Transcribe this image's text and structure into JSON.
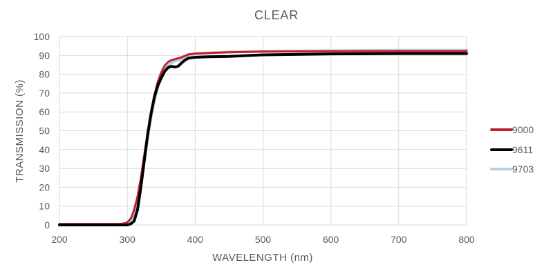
{
  "chart_data": {
    "type": "line",
    "title": "CLEAR",
    "xlabel": "WAVELENGTH (nm)",
    "ylabel": "TRANSMISSION (%)",
    "xlim": [
      200,
      800
    ],
    "ylim": [
      0,
      100
    ],
    "x_ticks": [
      200,
      300,
      400,
      500,
      600,
      700,
      800
    ],
    "y_ticks": [
      0,
      10,
      20,
      30,
      40,
      50,
      60,
      70,
      80,
      90,
      100
    ],
    "grid": true,
    "legend_position": "right",
    "series": [
      {
        "name": "9000",
        "color": "#c0202e",
        "x": [
          200,
          290,
          298,
          302,
          306,
          310,
          315,
          320,
          325,
          330,
          335,
          340,
          345,
          350,
          355,
          360,
          365,
          370,
          375,
          380,
          390,
          400,
          420,
          450,
          500,
          600,
          700,
          800
        ],
        "y": [
          0.5,
          0.5,
          1,
          2,
          4,
          8,
          15,
          25,
          37,
          49,
          60,
          69,
          76,
          81,
          84.5,
          86.5,
          87.5,
          88,
          88.5,
          89,
          90.5,
          91,
          91.3,
          91.7,
          92,
          92.2,
          92.3,
          92.3
        ]
      },
      {
        "name": "9611",
        "color": "#000000",
        "x": [
          200,
          300,
          305,
          310,
          315,
          320,
          325,
          330,
          335,
          340,
          345,
          350,
          355,
          360,
          365,
          370,
          375,
          380,
          385,
          390,
          395,
          400,
          420,
          450,
          500,
          600,
          700,
          800
        ],
        "y": [
          0,
          0,
          0.5,
          2,
          8,
          20,
          34,
          48,
          59,
          68,
          74,
          78,
          81.5,
          83.5,
          84.2,
          83.8,
          84.3,
          86,
          87.5,
          88.5,
          88.8,
          89,
          89.3,
          89.5,
          90.3,
          90.8,
          91,
          91
        ]
      },
      {
        "name": "9703",
        "color": "#b4d0e8",
        "x": [
          200,
          298,
          302,
          306,
          310,
          315,
          320,
          325,
          330,
          335,
          340,
          345,
          350,
          355,
          360,
          365,
          370,
          375,
          380,
          390,
          400,
          420,
          450,
          500,
          600,
          700,
          800
        ],
        "y": [
          0,
          0,
          1,
          3,
          6,
          12,
          22,
          34,
          46,
          57,
          66,
          73,
          78.5,
          82,
          84.5,
          86,
          87,
          87.5,
          88,
          90,
          90.8,
          91.3,
          91.8,
          92.2,
          92.5,
          92.8,
          92.8
        ]
      }
    ]
  }
}
